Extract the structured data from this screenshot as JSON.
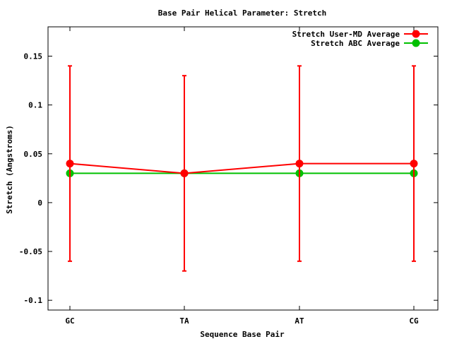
{
  "chart_data": {
    "type": "line",
    "title": "Base Pair Helical Parameter: Stretch",
    "xlabel": "Sequence Base Pair",
    "ylabel": "Stretch (Angstroms)",
    "categories": [
      "GC",
      "TA",
      "AT",
      "CG"
    ],
    "ylim": [
      -0.11,
      0.18
    ],
    "yticks": [
      -0.1,
      -0.05,
      0,
      0.05,
      0.1,
      0.15
    ],
    "ytick_labels": [
      "-0.1",
      "-0.05",
      "0",
      "0.05",
      "0.1",
      "0.15"
    ],
    "grid": false,
    "legend_position": "top-right",
    "series": [
      {
        "name": "Stretch User-MD Average",
        "color": "#ff0000",
        "values": [
          0.04,
          0.03,
          0.04,
          0.04
        ],
        "error_low": [
          -0.06,
          -0.07,
          -0.06,
          -0.06
        ],
        "error_high": [
          0.14,
          0.13,
          0.14,
          0.14
        ]
      },
      {
        "name": "Stretch ABC Average",
        "color": "#00c000",
        "values": [
          0.03,
          0.03,
          0.03,
          0.03
        ]
      }
    ]
  }
}
